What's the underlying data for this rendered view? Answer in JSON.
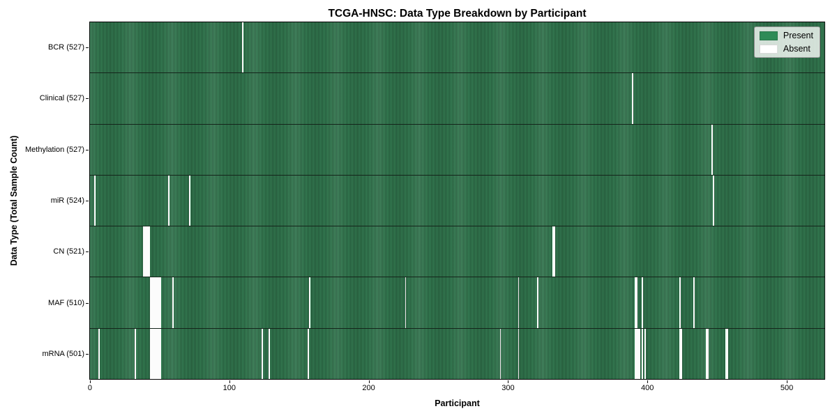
{
  "title": "TCGA-HNSC: Data Type Breakdown by Participant",
  "xlabel": "Participant",
  "ylabel": "Data Type (Total Sample Count)",
  "legend": {
    "present_label": "Present",
    "absent_label": "Absent"
  },
  "colors": {
    "present": "#2e8b57",
    "present_stripe_light": "#3d8f60",
    "present_stripe_dark": "#1f4c31",
    "absent": "#fcfcfc",
    "legend_bg": "#dfe5df",
    "border": "#000000"
  },
  "chart_data": {
    "type": "heatmap",
    "title": "TCGA-HNSC: Data Type Breakdown by Participant",
    "xlabel": "Participant",
    "ylabel": "Data Type (Total Sample Count)",
    "legend_entries": [
      "Present",
      "Absent"
    ],
    "legend_position": "upper right",
    "n_participants": 528,
    "x_axis_range": [
      0,
      527
    ],
    "x_ticks": [
      0,
      100,
      200,
      300,
      400,
      500
    ],
    "x_tick_labels": [
      "0",
      "100",
      "200",
      "300",
      "400",
      "500"
    ],
    "value_encoding": {
      "present": "green bar",
      "absent": "white gap"
    },
    "rows": [
      {
        "label": "BCR (527)",
        "data_type": "BCR",
        "present_count": 527,
        "absent_participants": [
          109
        ]
      },
      {
        "label": "Clinical (527)",
        "data_type": "Clinical",
        "present_count": 527,
        "absent_participants": [
          389
        ]
      },
      {
        "label": "Methylation (527)",
        "data_type": "Methylation",
        "present_count": 527,
        "absent_participants": [
          446
        ]
      },
      {
        "label": "miR (524)",
        "data_type": "miR",
        "present_count": 524,
        "absent_participants": [
          3,
          56,
          71,
          447
        ]
      },
      {
        "label": "CN (521)",
        "data_type": "CN",
        "present_count": 521,
        "absent_participants": [
          38,
          39,
          40,
          41,
          42,
          332,
          333
        ]
      },
      {
        "label": "MAF (510)",
        "data_type": "MAF",
        "present_count": 510,
        "absent_participants": [
          43,
          44,
          45,
          46,
          47,
          48,
          49,
          50,
          59,
          157,
          226,
          307,
          321,
          391,
          392,
          396,
          423,
          433
        ]
      },
      {
        "label": "mRNA (501)",
        "data_type": "mRNA",
        "present_count": 501,
        "absent_participants": [
          6,
          32,
          43,
          44,
          45,
          46,
          47,
          48,
          49,
          50,
          123,
          128,
          156,
          294,
          307,
          391,
          392,
          393,
          394,
          396,
          398,
          423,
          424,
          442,
          443,
          456,
          457
        ]
      }
    ]
  }
}
